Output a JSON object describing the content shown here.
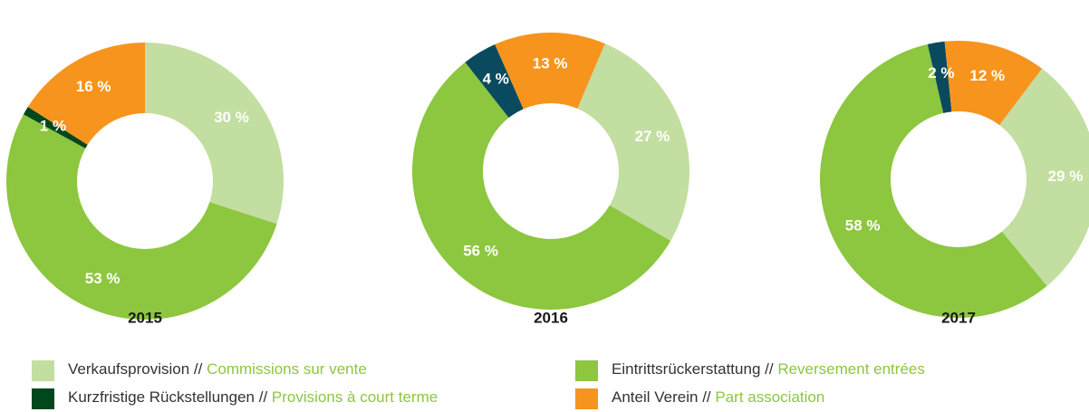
{
  "chart_data": [
    {
      "type": "pie",
      "title": "2015",
      "values": [
        30,
        53,
        1,
        16
      ],
      "value_labels": [
        "30 %",
        "53 %",
        "1 %",
        "16 %"
      ],
      "colors": [
        "#c2dea0",
        "#8dc63f",
        "#00471b",
        "#f7941d"
      ],
      "start_angle": 0,
      "donut": true
    },
    {
      "type": "pie",
      "title": "2016",
      "values": [
        27,
        56,
        4,
        13
      ],
      "value_labels": [
        "27 %",
        "56 %",
        "4 %",
        "13 %"
      ],
      "colors": [
        "#c2dea0",
        "#8dc63f",
        "#0a4a5e",
        "#f7941d"
      ],
      "start_angle": 23,
      "donut": true
    },
    {
      "type": "pie",
      "title": "2017",
      "values": [
        29,
        58,
        2,
        12
      ],
      "value_labels": [
        "29 %",
        "58 %",
        "2 %",
        "12 %"
      ],
      "colors": [
        "#c2dea0",
        "#8dc63f",
        "#0a4a5e",
        "#f7941d"
      ],
      "start_angle": 37,
      "donut": true
    }
  ],
  "legend": {
    "separator": "//",
    "items": [
      {
        "label": "Verkaufsprovision",
        "translation": "Commissions sur vente",
        "color": "#c2dea0"
      },
      {
        "label": "Eintrittsrückerstattung",
        "translation": "Reversement entrées",
        "color": "#8dc63f"
      },
      {
        "label": "Kurzfristige Rückstellungen",
        "translation": "Provisions à court terme",
        "color": "#00471b"
      },
      {
        "label": "Anteil Verein",
        "translation": "Part association",
        "color": "#f7941d"
      }
    ]
  }
}
